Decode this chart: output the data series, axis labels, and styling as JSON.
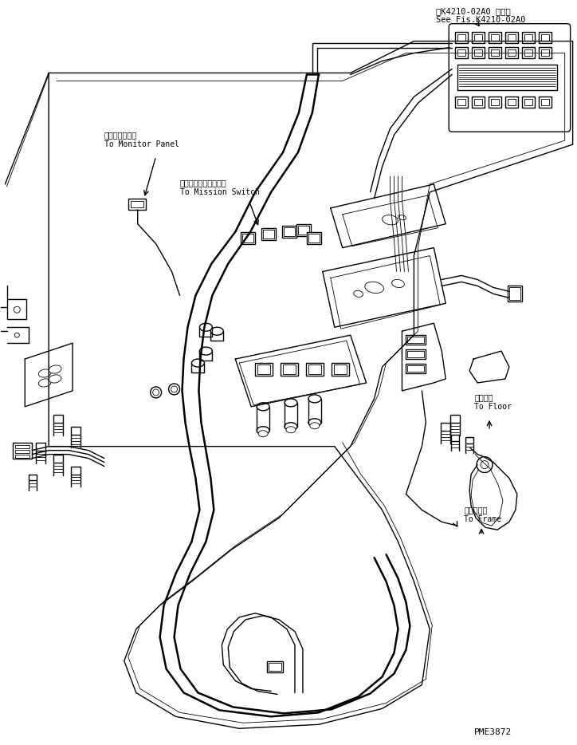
{
  "bg_color": "#ffffff",
  "line_color": "#000000",
  "title_line1": "第K4210-02A0 図参照",
  "title_line2": "See Fis.K4210-02A0",
  "label_monitor_jp": "モニタパネルへ",
  "label_monitor_en": "To Monitor Panel",
  "label_mission_jp": "ミッションスイッチへ",
  "label_mission_en": "To Mission Switch",
  "label_floor_jp": "フロアへ",
  "label_floor_en": "To Floor",
  "label_frame_jp": "フレームへ",
  "label_frame_en": "To Frame",
  "part_number": "PME3872",
  "font_size_small": 7,
  "font_size_title": 7.5,
  "font_size_part": 8,
  "lw_main": 1.0,
  "lw_thin": 0.6,
  "lw_thick": 1.8
}
